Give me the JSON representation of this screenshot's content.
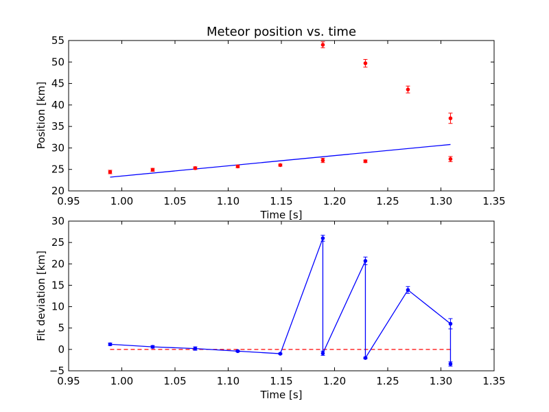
{
  "chart_data": [
    {
      "type": "scatter",
      "title": "Meteor position vs. time",
      "xlabel": "Time [s]",
      "ylabel": "Position [km]",
      "xlim": [
        0.95,
        1.35
      ],
      "ylim": [
        20,
        55
      ],
      "xticks": [
        "0.95",
        "1.00",
        "1.05",
        "1.10",
        "1.15",
        "1.20",
        "1.25",
        "1.30",
        "1.35"
      ],
      "yticks": [
        "20",
        "25",
        "30",
        "35",
        "40",
        "45",
        "50",
        "55"
      ],
      "grid": false,
      "colors": {
        "points": "#ff0000",
        "fit": "#0000ff"
      },
      "points": [
        {
          "x": 0.989,
          "y": 24.4,
          "err": 0.4
        },
        {
          "x": 1.029,
          "y": 24.9,
          "err": 0.35
        },
        {
          "x": 1.069,
          "y": 25.3,
          "err": 0.3
        },
        {
          "x": 1.109,
          "y": 25.7,
          "err": 0.3
        },
        {
          "x": 1.149,
          "y": 26.0,
          "err": 0.25
        },
        {
          "x": 1.189,
          "y": 27.1,
          "err": 0.5
        },
        {
          "x": 1.189,
          "y": 54.0,
          "err": 0.7
        },
        {
          "x": 1.229,
          "y": 26.9,
          "err": 0.3
        },
        {
          "x": 1.229,
          "y": 49.7,
          "err": 0.9
        },
        {
          "x": 1.269,
          "y": 43.6,
          "err": 0.8
        },
        {
          "x": 1.309,
          "y": 27.4,
          "err": 0.6
        },
        {
          "x": 1.309,
          "y": 36.9,
          "err": 1.2
        }
      ],
      "fit_line": {
        "x": [
          0.989,
          1.309
        ],
        "y": [
          23.2,
          30.8
        ]
      }
    },
    {
      "type": "line",
      "title": "",
      "xlabel": "Time [s]",
      "ylabel": "Fit deviation [km]",
      "xlim": [
        0.95,
        1.35
      ],
      "ylim": [
        -5,
        30
      ],
      "xticks": [
        "0.95",
        "1.00",
        "1.05",
        "1.10",
        "1.15",
        "1.20",
        "1.25",
        "1.30",
        "1.35"
      ],
      "yticks": [
        "−5",
        "0",
        "5",
        "10",
        "15",
        "20",
        "25",
        "30"
      ],
      "grid": false,
      "colors": {
        "series": "#0000ff",
        "zero_line": "#ff0000"
      },
      "points": [
        {
          "x": 0.989,
          "y": 1.2,
          "err": 0.3
        },
        {
          "x": 1.029,
          "y": 0.6,
          "err": 0.3
        },
        {
          "x": 1.069,
          "y": 0.2,
          "err": 0.4
        },
        {
          "x": 1.109,
          "y": -0.4,
          "err": 0.2
        },
        {
          "x": 1.149,
          "y": -1.0,
          "err": 0.15
        },
        {
          "x": 1.189,
          "y": 26.0,
          "err": 0.7
        },
        {
          "x": 1.189,
          "y": -0.9,
          "err": 0.5
        },
        {
          "x": 1.229,
          "y": 20.7,
          "err": 0.9
        },
        {
          "x": 1.229,
          "y": -2.0,
          "err": 0.2
        },
        {
          "x": 1.269,
          "y": 13.9,
          "err": 0.8
        },
        {
          "x": 1.309,
          "y": 6.0,
          "err": 1.2
        },
        {
          "x": 1.309,
          "y": -3.4,
          "err": 0.5
        }
      ],
      "zero_line": {
        "x": [
          0.989,
          1.309
        ],
        "y": [
          0,
          0
        ]
      }
    }
  ]
}
